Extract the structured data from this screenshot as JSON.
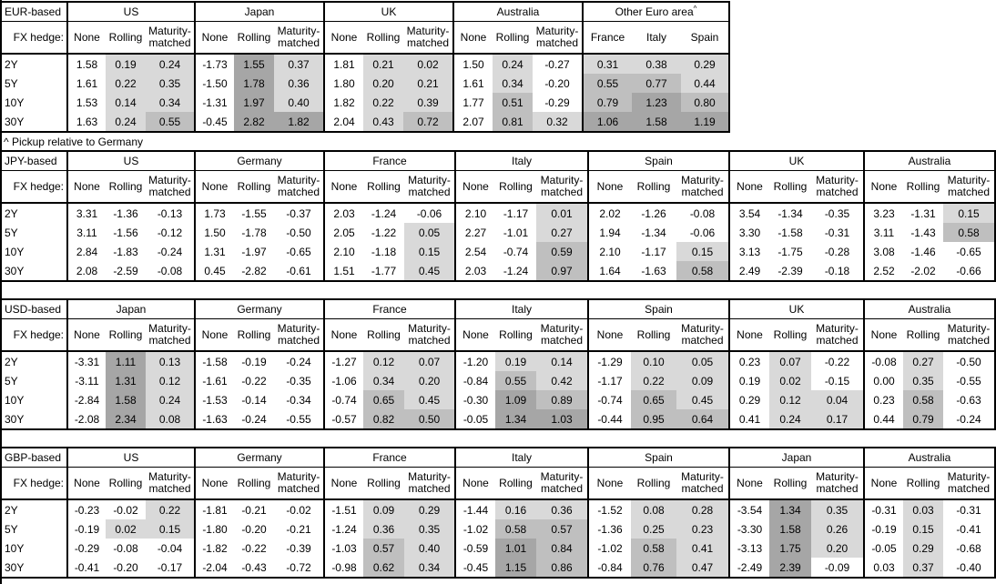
{
  "footnote": "^ Pickup relative to Germany",
  "fx_hedge_label": "FX hedge:",
  "hedge_columns": [
    "None",
    "Rolling",
    "Maturity-matched"
  ],
  "tenors": [
    "2Y",
    "5Y",
    "10Y",
    "30Y"
  ],
  "shading": {
    "description": "hedged-yield pickup heatmap; values below 0 unshaded",
    "thresholds": [
      0,
      0.5,
      1.0
    ],
    "light": "#D9D9D9",
    "medium": "#BFBFBF",
    "dark": "#A6A6A6",
    "border_color": "#000000"
  },
  "chart_data": [
    {
      "type": "table",
      "title": "EUR-based",
      "groups": [
        {
          "name": "US",
          "rows": [
            [
              1.58,
              0.19,
              0.24
            ],
            [
              1.61,
              0.22,
              0.35
            ],
            [
              1.53,
              0.14,
              0.34
            ],
            [
              1.63,
              0.24,
              0.55
            ]
          ]
        },
        {
          "name": "Japan",
          "rows": [
            [
              -1.73,
              1.55,
              0.37
            ],
            [
              -1.5,
              1.78,
              0.36
            ],
            [
              -1.31,
              1.97,
              0.4
            ],
            [
              -0.45,
              2.82,
              1.82
            ]
          ]
        },
        {
          "name": "UK",
          "rows": [
            [
              1.81,
              0.21,
              0.02
            ],
            [
              1.8,
              0.2,
              0.21
            ],
            [
              1.82,
              0.22,
              0.39
            ],
            [
              2.04,
              0.43,
              0.72
            ]
          ]
        },
        {
          "name": "Australia",
          "rows": [
            [
              1.5,
              0.24,
              -0.27
            ],
            [
              1.61,
              0.34,
              -0.2
            ],
            [
              1.77,
              0.51,
              -0.29
            ],
            [
              2.07,
              0.81,
              0.32
            ]
          ]
        },
        {
          "name": "Other Euro area",
          "sup": "^",
          "columns": [
            "France",
            "Italy",
            "Spain"
          ],
          "shade_all": true,
          "rows": [
            [
              0.31,
              0.38,
              0.29
            ],
            [
              0.55,
              0.77,
              0.44
            ],
            [
              0.79,
              1.23,
              0.8
            ],
            [
              1.06,
              1.58,
              1.19
            ]
          ]
        }
      ]
    },
    {
      "type": "table",
      "title": "JPY-based",
      "groups": [
        {
          "name": "US",
          "rows": [
            [
              3.31,
              -1.36,
              -0.13
            ],
            [
              3.11,
              -1.56,
              -0.12
            ],
            [
              2.84,
              -1.83,
              -0.24
            ],
            [
              2.08,
              -2.59,
              -0.08
            ]
          ]
        },
        {
          "name": "Germany",
          "rows": [
            [
              1.73,
              -1.55,
              -0.37
            ],
            [
              1.5,
              -1.78,
              -0.5
            ],
            [
              1.31,
              -1.97,
              -0.65
            ],
            [
              0.45,
              -2.82,
              -0.61
            ]
          ]
        },
        {
          "name": "France",
          "rows": [
            [
              2.03,
              -1.24,
              -0.06
            ],
            [
              2.05,
              -1.22,
              0.05
            ],
            [
              2.1,
              -1.18,
              0.15
            ],
            [
              1.51,
              -1.77,
              0.45
            ]
          ]
        },
        {
          "name": "Italy",
          "rows": [
            [
              2.1,
              -1.17,
              0.01
            ],
            [
              2.27,
              -1.01,
              0.27
            ],
            [
              2.54,
              -0.74,
              0.59
            ],
            [
              2.03,
              -1.24,
              0.97
            ]
          ]
        },
        {
          "name": "Spain",
          "rows": [
            [
              2.02,
              -1.26,
              -0.08
            ],
            [
              1.94,
              -1.34,
              -0.06
            ],
            [
              2.1,
              -1.17,
              0.15
            ],
            [
              1.64,
              -1.63,
              0.58
            ]
          ]
        },
        {
          "name": "UK",
          "rows": [
            [
              3.54,
              -1.34,
              -0.35
            ],
            [
              3.3,
              -1.58,
              -0.31
            ],
            [
              3.13,
              -1.75,
              -0.28
            ],
            [
              2.49,
              -2.39,
              -0.18
            ]
          ]
        },
        {
          "name": "Australia",
          "rows": [
            [
              3.23,
              -1.31,
              0.15
            ],
            [
              3.11,
              -1.43,
              0.58
            ],
            [
              3.08,
              -1.46,
              -0.65
            ],
            [
              2.52,
              -2.02,
              -0.66
            ]
          ]
        }
      ]
    },
    {
      "type": "table",
      "title": "USD-based",
      "groups": [
        {
          "name": "Japan",
          "rows": [
            [
              -3.31,
              1.11,
              0.13
            ],
            [
              -3.11,
              1.31,
              0.12
            ],
            [
              -2.84,
              1.58,
              0.24
            ],
            [
              -2.08,
              2.34,
              0.08
            ]
          ]
        },
        {
          "name": "Germany",
          "rows": [
            [
              -1.58,
              -0.19,
              -0.24
            ],
            [
              -1.61,
              -0.22,
              -0.35
            ],
            [
              -1.53,
              -0.14,
              -0.34
            ],
            [
              -1.63,
              -0.24,
              -0.55
            ]
          ]
        },
        {
          "name": "France",
          "rows": [
            [
              -1.27,
              0.12,
              0.07
            ],
            [
              -1.06,
              0.34,
              0.2
            ],
            [
              -0.74,
              0.65,
              0.45
            ],
            [
              -0.57,
              0.82,
              0.5
            ]
          ]
        },
        {
          "name": "Italy",
          "rows": [
            [
              -1.2,
              0.19,
              0.14
            ],
            [
              -0.84,
              0.55,
              0.42
            ],
            [
              -0.3,
              1.09,
              0.89
            ],
            [
              -0.05,
              1.34,
              1.03
            ]
          ]
        },
        {
          "name": "Spain",
          "rows": [
            [
              -1.29,
              0.1,
              0.05
            ],
            [
              -1.17,
              0.22,
              0.09
            ],
            [
              -0.74,
              0.65,
              0.45
            ],
            [
              -0.44,
              0.95,
              0.64
            ]
          ]
        },
        {
          "name": "UK",
          "rows": [
            [
              0.23,
              0.07,
              -0.22
            ],
            [
              0.19,
              0.02,
              -0.15
            ],
            [
              0.29,
              0.12,
              0.04
            ],
            [
              0.41,
              0.24,
              0.17
            ]
          ]
        },
        {
          "name": "Australia",
          "rows": [
            [
              -0.08,
              0.27,
              -0.5
            ],
            [
              0.0,
              0.35,
              -0.55
            ],
            [
              0.23,
              0.58,
              -0.63
            ],
            [
              0.44,
              0.79,
              -0.24
            ]
          ]
        }
      ]
    },
    {
      "type": "table",
      "title": "GBP-based",
      "groups": [
        {
          "name": "US",
          "rows": [
            [
              -0.23,
              -0.02,
              0.22
            ],
            [
              -0.19,
              0.02,
              0.15
            ],
            [
              -0.29,
              -0.08,
              -0.04
            ],
            [
              -0.41,
              -0.2,
              -0.17
            ]
          ]
        },
        {
          "name": "Germany",
          "rows": [
            [
              -1.81,
              -0.21,
              -0.02
            ],
            [
              -1.8,
              -0.2,
              -0.21
            ],
            [
              -1.82,
              -0.22,
              -0.39
            ],
            [
              -2.04,
              -0.43,
              -0.72
            ]
          ]
        },
        {
          "name": "France",
          "rows": [
            [
              -1.51,
              0.09,
              0.29
            ],
            [
              -1.24,
              0.36,
              0.35
            ],
            [
              -1.03,
              0.57,
              0.4
            ],
            [
              -0.98,
              0.62,
              0.34
            ]
          ]
        },
        {
          "name": "Italy",
          "rows": [
            [
              -1.44,
              0.16,
              0.36
            ],
            [
              -1.02,
              0.58,
              0.57
            ],
            [
              -0.59,
              1.01,
              0.84
            ],
            [
              -0.45,
              1.15,
              0.86
            ]
          ]
        },
        {
          "name": "Spain",
          "rows": [
            [
              -1.52,
              0.08,
              0.28
            ],
            [
              -1.36,
              0.25,
              0.23
            ],
            [
              -1.02,
              0.58,
              0.41
            ],
            [
              -0.84,
              0.76,
              0.47
            ]
          ]
        },
        {
          "name": "Japan",
          "rows": [
            [
              -3.54,
              1.34,
              0.35
            ],
            [
              -3.3,
              1.58,
              0.26
            ],
            [
              -3.13,
              1.75,
              0.2
            ],
            [
              -2.49,
              2.39,
              -0.09
            ]
          ]
        },
        {
          "name": "Australia",
          "rows": [
            [
              -0.31,
              0.03,
              -0.31
            ],
            [
              -0.19,
              0.15,
              -0.41
            ],
            [
              -0.05,
              0.29,
              -0.68
            ],
            [
              0.03,
              0.37,
              -0.4
            ]
          ]
        }
      ]
    }
  ]
}
